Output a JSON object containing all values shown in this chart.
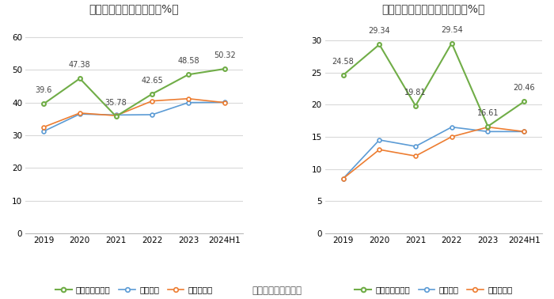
{
  "left_title": "近年来资产负债率情况（%）",
  "right_title": "近年来有息资产负债率情况（%）",
  "categories": [
    "2019",
    "2020",
    "2021",
    "2022",
    "2023",
    "2024H1"
  ],
  "left": {
    "company": [
      39.6,
      47.38,
      35.78,
      42.65,
      48.58,
      50.32
    ],
    "industry_avg": [
      31.2,
      36.5,
      36.2,
      36.3,
      40.0,
      40.1
    ],
    "industry_median": [
      32.5,
      36.8,
      36.0,
      40.5,
      41.2,
      40.0
    ],
    "company_label": "公司资产负债率",
    "avg_label": "行业均值",
    "median_label": "行业中位数",
    "ylim": [
      0,
      65
    ],
    "yticks": [
      0,
      10,
      20,
      30,
      40,
      50,
      60
    ]
  },
  "right": {
    "company": [
      24.58,
      29.34,
      19.81,
      29.54,
      16.61,
      20.46
    ],
    "industry_avg": [
      8.5,
      14.5,
      13.5,
      16.5,
      15.8,
      15.8
    ],
    "industry_median": [
      8.5,
      13.0,
      12.0,
      15.0,
      16.5,
      15.8
    ],
    "company_label": "有息资产负债率",
    "avg_label": "行业均值",
    "median_label": "行业中位数",
    "ylim": [
      0,
      33
    ],
    "yticks": [
      0,
      5,
      10,
      15,
      20,
      25,
      30
    ]
  },
  "color_green": "#70ad47",
  "color_blue": "#5b9bd5",
  "color_orange": "#ed7d31",
  "footer": "数据来源：恒生聚源",
  "bg_color": "#ffffff",
  "grid_color": "#d9d9d9",
  "annotation_fontsize": 7.0,
  "tick_fontsize": 7.5,
  "title_fontsize": 10,
  "legend_fontsize": 7.5,
  "footer_fontsize": 8.5
}
